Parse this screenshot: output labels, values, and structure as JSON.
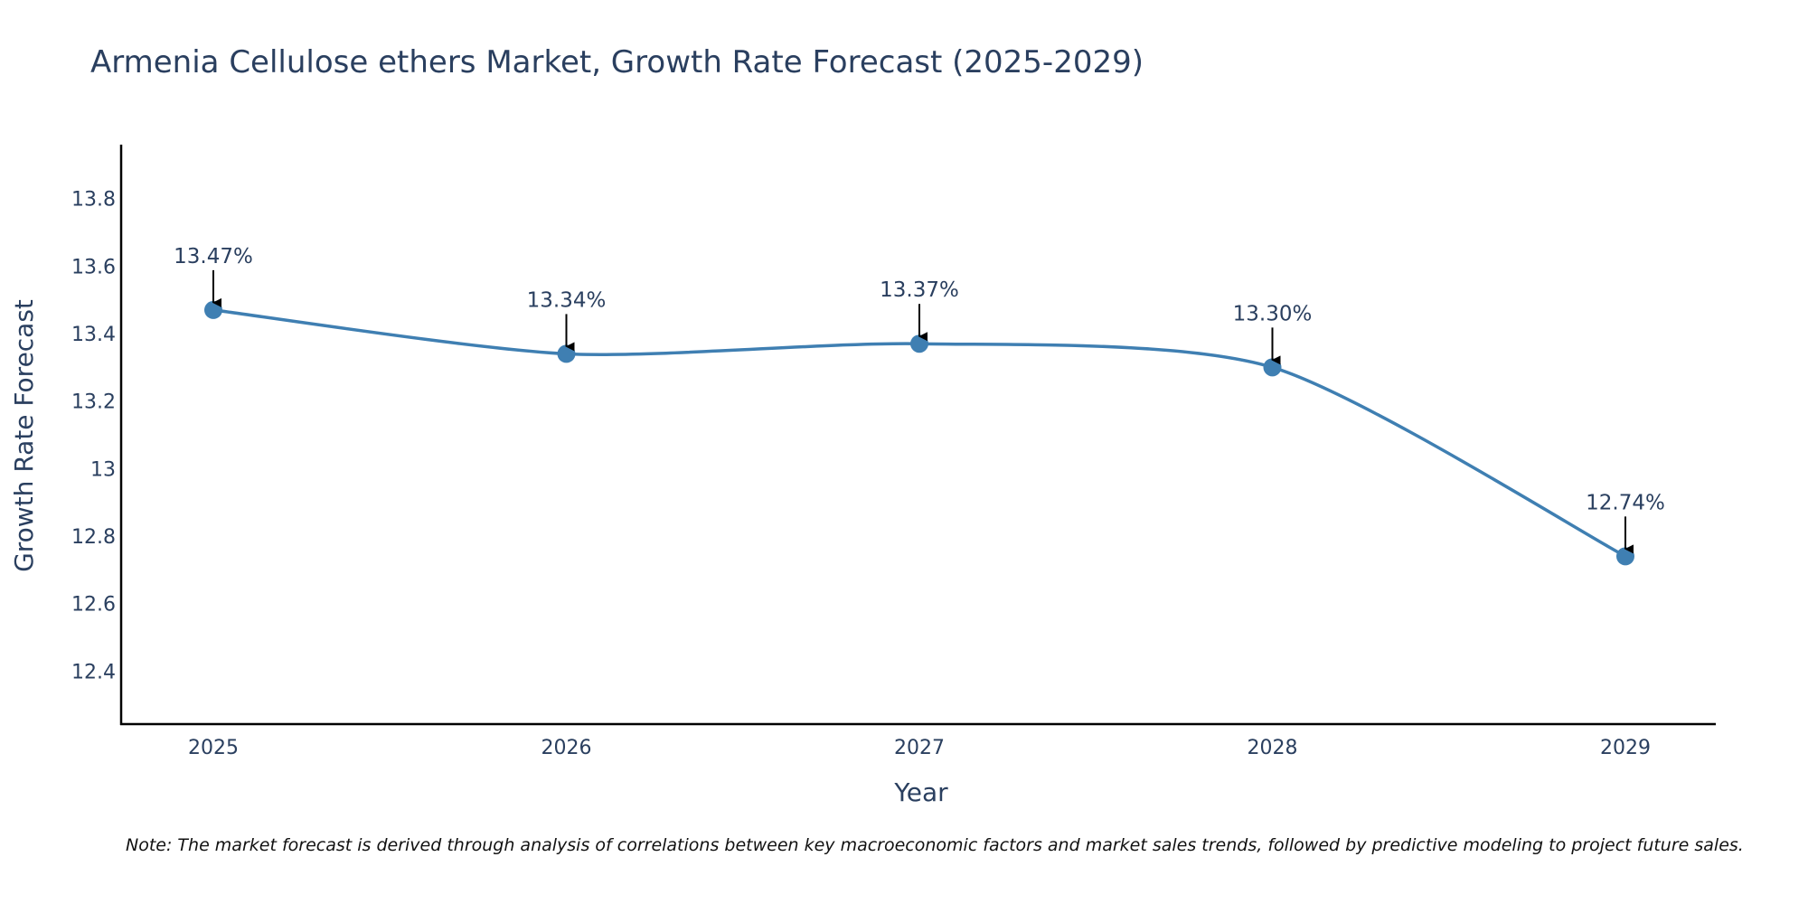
{
  "chart_data": {
    "type": "line",
    "title": "Armenia Cellulose ethers Market, Growth Rate Forecast (2025-2029)",
    "xlabel": "Year",
    "ylabel": "Growth Rate Forecast",
    "categories": [
      "2025",
      "2026",
      "2027",
      "2028",
      "2029"
    ],
    "series": [
      {
        "name": "Growth Rate Forecast",
        "values": [
          13.47,
          13.34,
          13.37,
          13.3,
          12.74
        ],
        "labels": [
          "13.47%",
          "13.34%",
          "13.37%",
          "13.30%",
          "12.74%"
        ],
        "color": "#3f7fb2"
      }
    ],
    "ylim": [
      12.24,
      13.96
    ],
    "yticks": [
      12.4,
      12.6,
      12.8,
      13,
      13.2,
      13.4,
      13.6,
      13.8
    ],
    "ytick_labels": [
      "12.4",
      "12.6",
      "12.8",
      "13",
      "13.2",
      "13.4",
      "13.6",
      "13.8"
    ],
    "grid": false,
    "note": "Note: The market forecast is derived through analysis of correlations between key macroeconomic factors and market sales trends, followed by predictive modeling to project future sales."
  },
  "colors": {
    "text": "#2a3f5f",
    "line": "#3f7fb2",
    "axis": "#000000",
    "arrow": "#000000"
  }
}
